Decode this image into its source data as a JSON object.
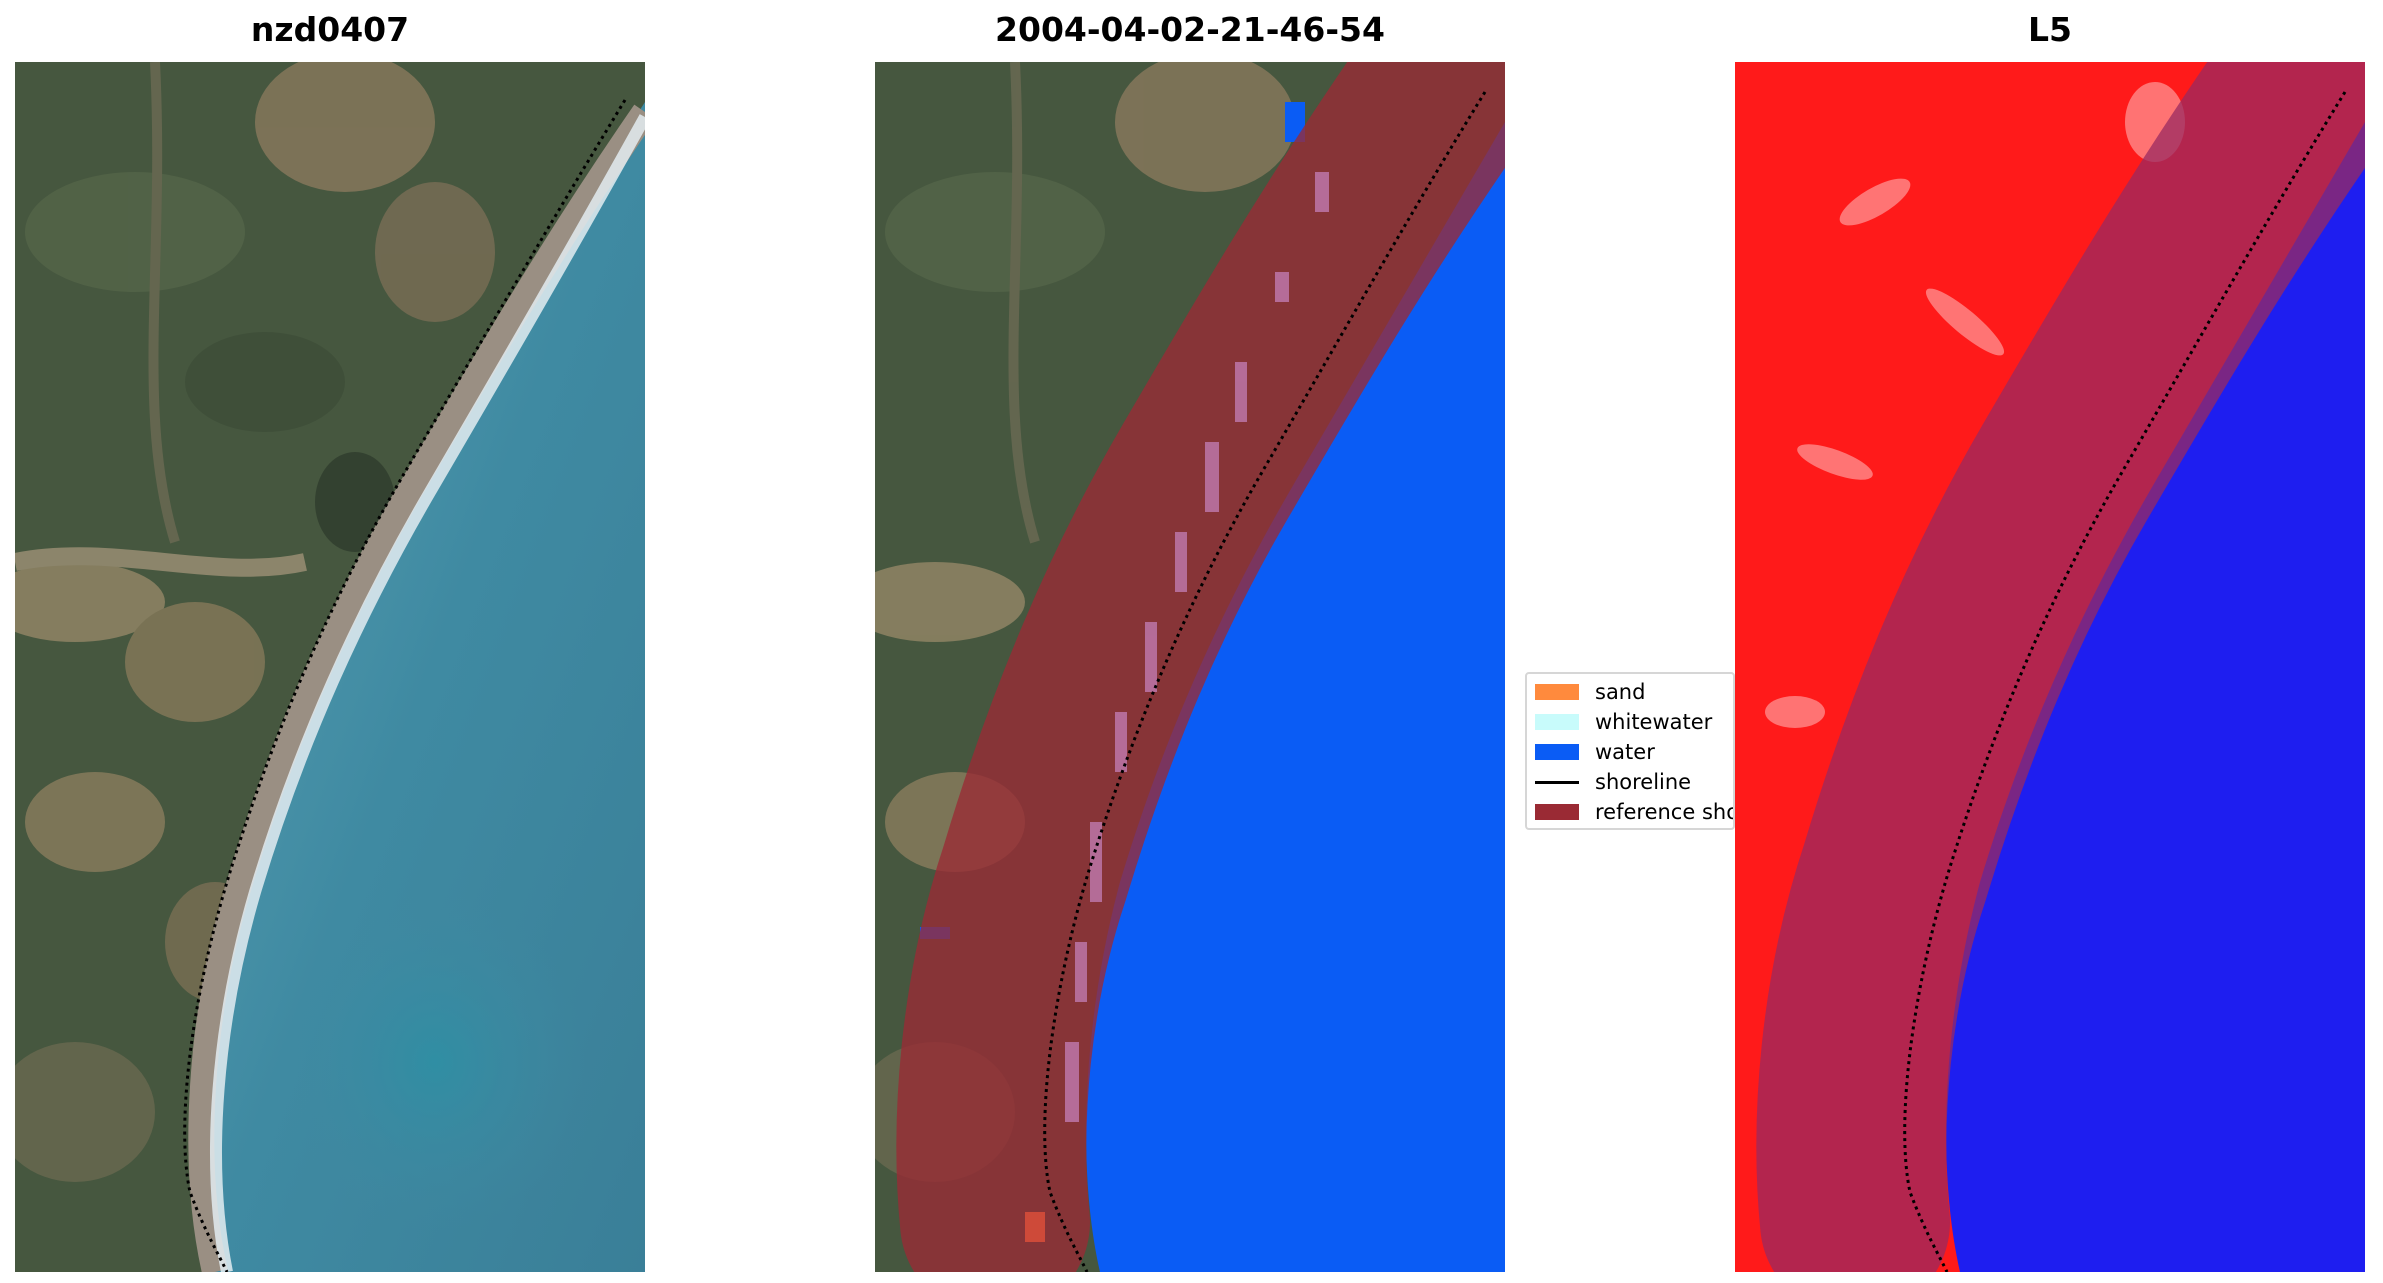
{
  "panels": {
    "left": {
      "title": "nzd0407"
    },
    "middle": {
      "title": "2004-04-02-21-46-54"
    },
    "right": {
      "title": "L5"
    }
  },
  "legend": {
    "items": [
      {
        "label": "sand",
        "color": "#ff8a3d",
        "kind": "patch"
      },
      {
        "label": "whitewater",
        "color": "#c8fbfb",
        "kind": "patch"
      },
      {
        "label": "water",
        "color": "#0a5cf5",
        "kind": "patch"
      },
      {
        "label": "shoreline",
        "color": "#000000",
        "kind": "line"
      },
      {
        "label": "reference shoreline buffer",
        "color": "#9a2a34",
        "kind": "patch"
      }
    ]
  },
  "colors": {
    "land_green": "#46573f",
    "land_brown": "#8a7a5e",
    "sea": "#3f87a0",
    "surf": "#dde8ee",
    "water_class": "#0a5cf5",
    "buffer": "#9a2a34",
    "land_index": "#ff1a1a",
    "water_index": "#1e1ef0"
  }
}
